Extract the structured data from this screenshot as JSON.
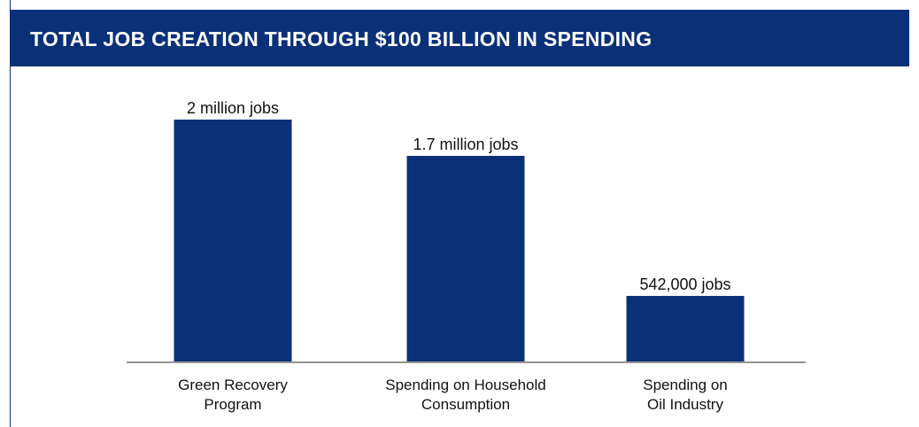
{
  "banner": {
    "title": "TOTAL JOB CREATION THROUGH $100 BILLION IN SPENDING",
    "background": "#0a3078"
  },
  "chart_data": {
    "type": "bar",
    "title": "TOTAL JOB CREATION THROUGH $100 BILLION IN SPENDING",
    "categories": [
      [
        "Green Recovery",
        "Program"
      ],
      [
        "Spending on Household",
        "Consumption"
      ],
      [
        "Spending on",
        "Oil Industry"
      ]
    ],
    "values": [
      2000000,
      1700000,
      542000
    ],
    "data_labels": [
      "2 million jobs",
      "1.7 million jobs",
      "542,000 jobs"
    ],
    "bar_color": "#0a3078",
    "ylim": [
      0,
      2000000
    ],
    "grid": false,
    "legend": "none"
  }
}
